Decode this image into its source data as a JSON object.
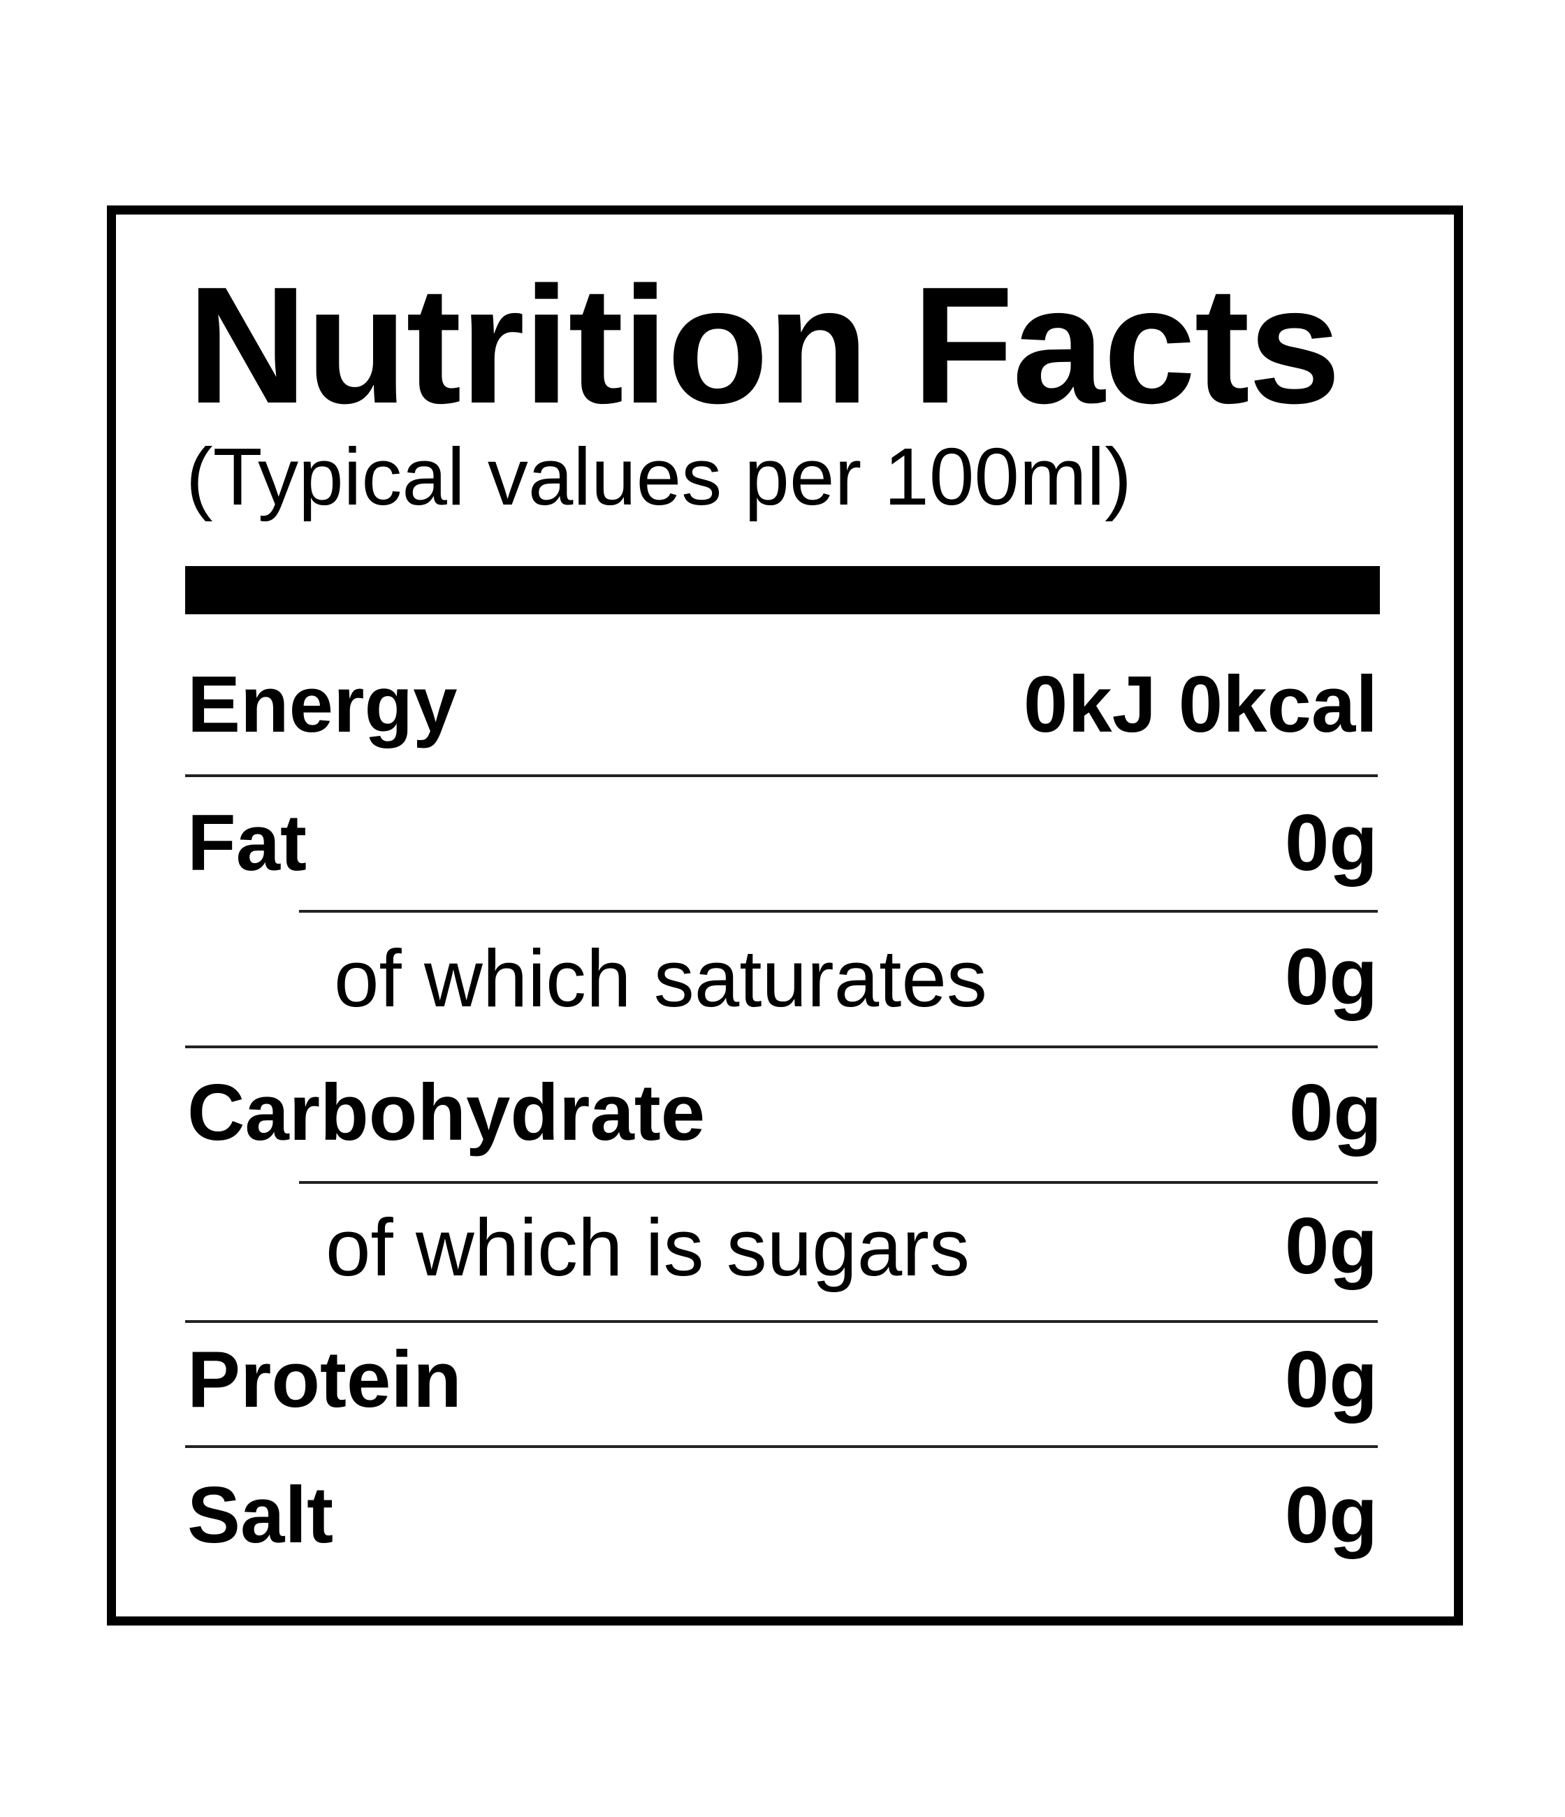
{
  "title": "Nutrition Facts",
  "subtitle": "(Typical values per 100ml)",
  "rows": [
    {
      "label": "Energy",
      "value": "0kJ 0kcal",
      "indent": false
    },
    {
      "label": "Fat",
      "value": "0g",
      "indent": false
    },
    {
      "label": "of which saturates",
      "value": "0g",
      "indent": true
    },
    {
      "label": "Carbohydrate",
      "value": "0g",
      "indent": false
    },
    {
      "label": "of which is sugars",
      "value": "0g",
      "indent": true
    },
    {
      "label": "Protein",
      "value": "0g",
      "indent": false
    },
    {
      "label": "Salt",
      "value": "0g",
      "indent": false
    }
  ]
}
